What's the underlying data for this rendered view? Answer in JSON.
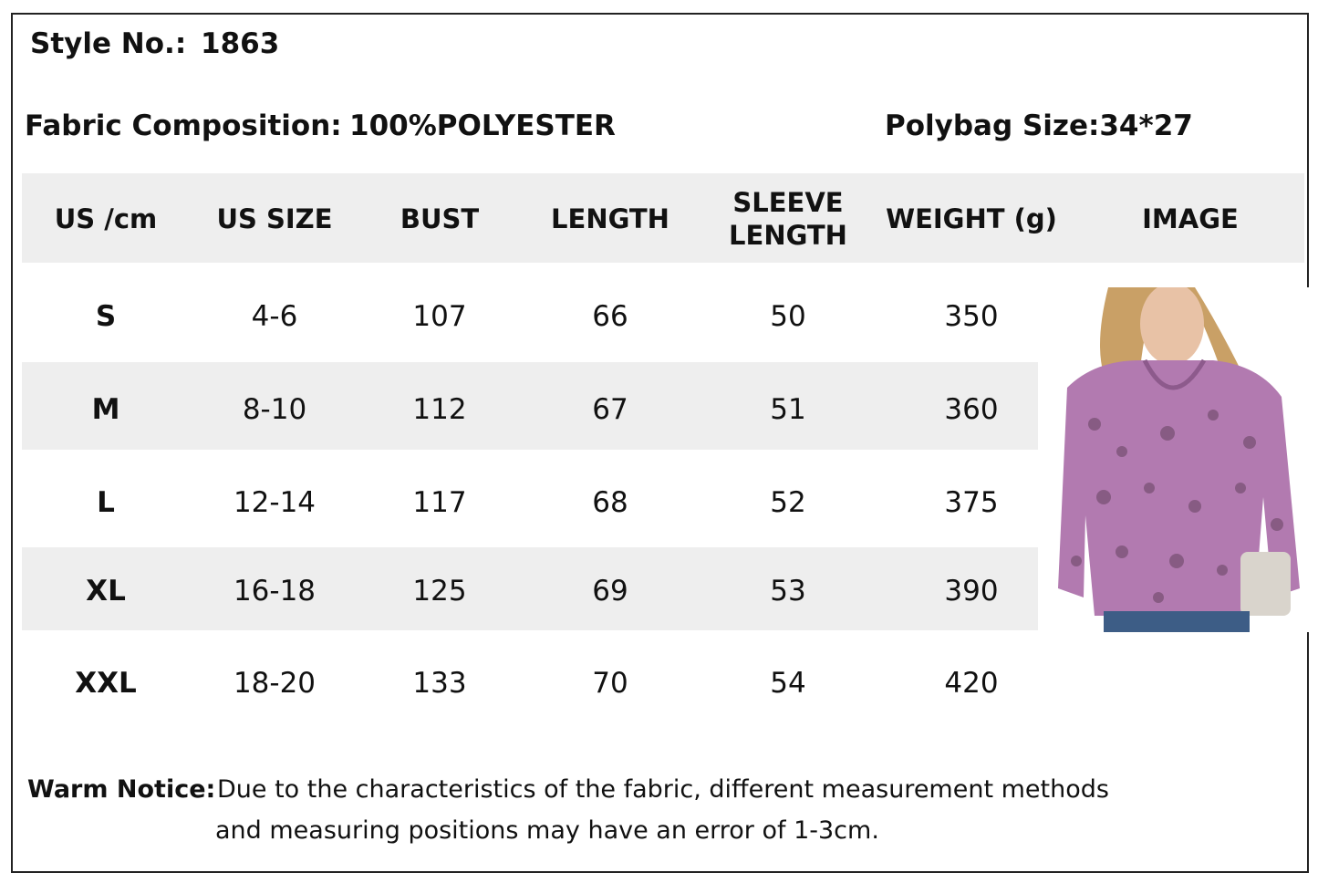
{
  "header": {
    "style_label": "Style No.:",
    "style_number": "1863",
    "fabric_label": "Fabric Composition:",
    "fabric": "100%POLYESTER",
    "polybag": "Polybag Size:34*27"
  },
  "table": {
    "columns": [
      "US /cm",
      "US SIZE",
      "BUST",
      "LENGTH",
      "SLEEVE LENGTH",
      "WEIGHT (g)",
      "IMAGE"
    ],
    "rows": [
      [
        "S",
        "4-6",
        107,
        66,
        50,
        350
      ],
      [
        "M",
        "8-10",
        112,
        67,
        51,
        360
      ],
      [
        "L",
        "12-14",
        117,
        68,
        52,
        375
      ],
      [
        "XL",
        "16-18",
        125,
        69,
        53,
        390
      ],
      [
        "XXL",
        "18-20",
        133,
        70,
        54,
        420
      ]
    ]
  },
  "notice": {
    "label": "Warm Notice:",
    "lines": [
      "Due to the characteristics of the fabric, different measurement methods",
      "and measuring positions may have an error of 1-3cm."
    ]
  }
}
